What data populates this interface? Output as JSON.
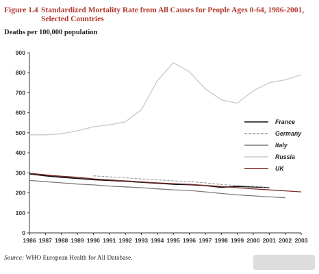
{
  "figure": {
    "label": "Figure 1.4",
    "title": "Standardized Mortality Rate from All Causes for People Ages 0-64, 1986-2001, Selected Countries",
    "ylabel": "Deaths per 100,000 population",
    "source_prefix": "Source:",
    "source_text": " WHO European Health for All Database."
  },
  "colors": {
    "France": "#111111",
    "Germany": "#9a9a9a",
    "Italy": "#7a7a7a",
    "Russia": "#c8c8c8",
    "UK": "#7a2a2a",
    "title": "#b23a2e"
  },
  "chart_data": {
    "type": "line",
    "title": "Standardized Mortality Rate from All Causes for People Ages 0-64, 1986-2001, Selected Countries",
    "xlabel": "",
    "ylabel": "Deaths per 100,000 population",
    "xlim": [
      1986,
      2003
    ],
    "ylim": [
      0,
      900
    ],
    "x_ticks": [
      1986,
      1987,
      1988,
      1989,
      1990,
      1991,
      1992,
      1993,
      1994,
      1995,
      1996,
      1997,
      1998,
      1999,
      2000,
      2001,
      2002,
      2003
    ],
    "y_ticks": [
      0,
      100,
      200,
      300,
      400,
      500,
      600,
      700,
      800,
      900
    ],
    "grid": false,
    "legend_position": "right",
    "series": [
      {
        "name": "France",
        "style": "solid",
        "x": [
          1986,
          1987,
          1988,
          1989,
          1990,
          1991,
          1992,
          1993,
          1994,
          1995,
          1996,
          1997,
          1998,
          1999,
          2000,
          2001
        ],
        "y": [
          295,
          285,
          278,
          272,
          266,
          262,
          258,
          253,
          248,
          243,
          241,
          236,
          228,
          232,
          230,
          226
        ]
      },
      {
        "name": "Germany",
        "style": "dashed",
        "x": [
          1990,
          1991,
          1992,
          1993,
          1994,
          1995,
          1996,
          1997,
          1998,
          1999,
          2000,
          2001
        ],
        "y": [
          285,
          280,
          275,
          270,
          265,
          260,
          256,
          250,
          242,
          236,
          232,
          228
        ]
      },
      {
        "name": "Italy",
        "style": "solid",
        "x": [
          1986,
          1987,
          1988,
          1989,
          1990,
          1991,
          1992,
          1993,
          1994,
          1995,
          1996,
          1997,
          1998,
          1999,
          2000,
          2001,
          2002
        ],
        "y": [
          262,
          256,
          250,
          244,
          240,
          234,
          230,
          226,
          220,
          215,
          212,
          205,
          197,
          190,
          185,
          180,
          176
        ]
      },
      {
        "name": "Russia",
        "style": "solid",
        "x": [
          1986,
          1987,
          1988,
          1989,
          1990,
          1991,
          1992,
          1993,
          1994,
          1995,
          1996,
          1997,
          1998,
          1999,
          2000,
          2001,
          2002,
          2003
        ],
        "y": [
          490,
          490,
          495,
          510,
          530,
          540,
          555,
          615,
          760,
          850,
          805,
          720,
          665,
          648,
          710,
          750,
          765,
          790
        ]
      },
      {
        "name": "UK",
        "style": "solid",
        "x": [
          1986,
          1987,
          1988,
          1989,
          1990,
          1991,
          1992,
          1993,
          1994,
          1995,
          1996,
          1997,
          1998,
          1999,
          2000,
          2001,
          2002,
          2003
        ],
        "y": [
          298,
          290,
          283,
          278,
          270,
          265,
          260,
          255,
          250,
          246,
          243,
          237,
          232,
          226,
          220,
          215,
          210,
          205
        ]
      }
    ]
  }
}
